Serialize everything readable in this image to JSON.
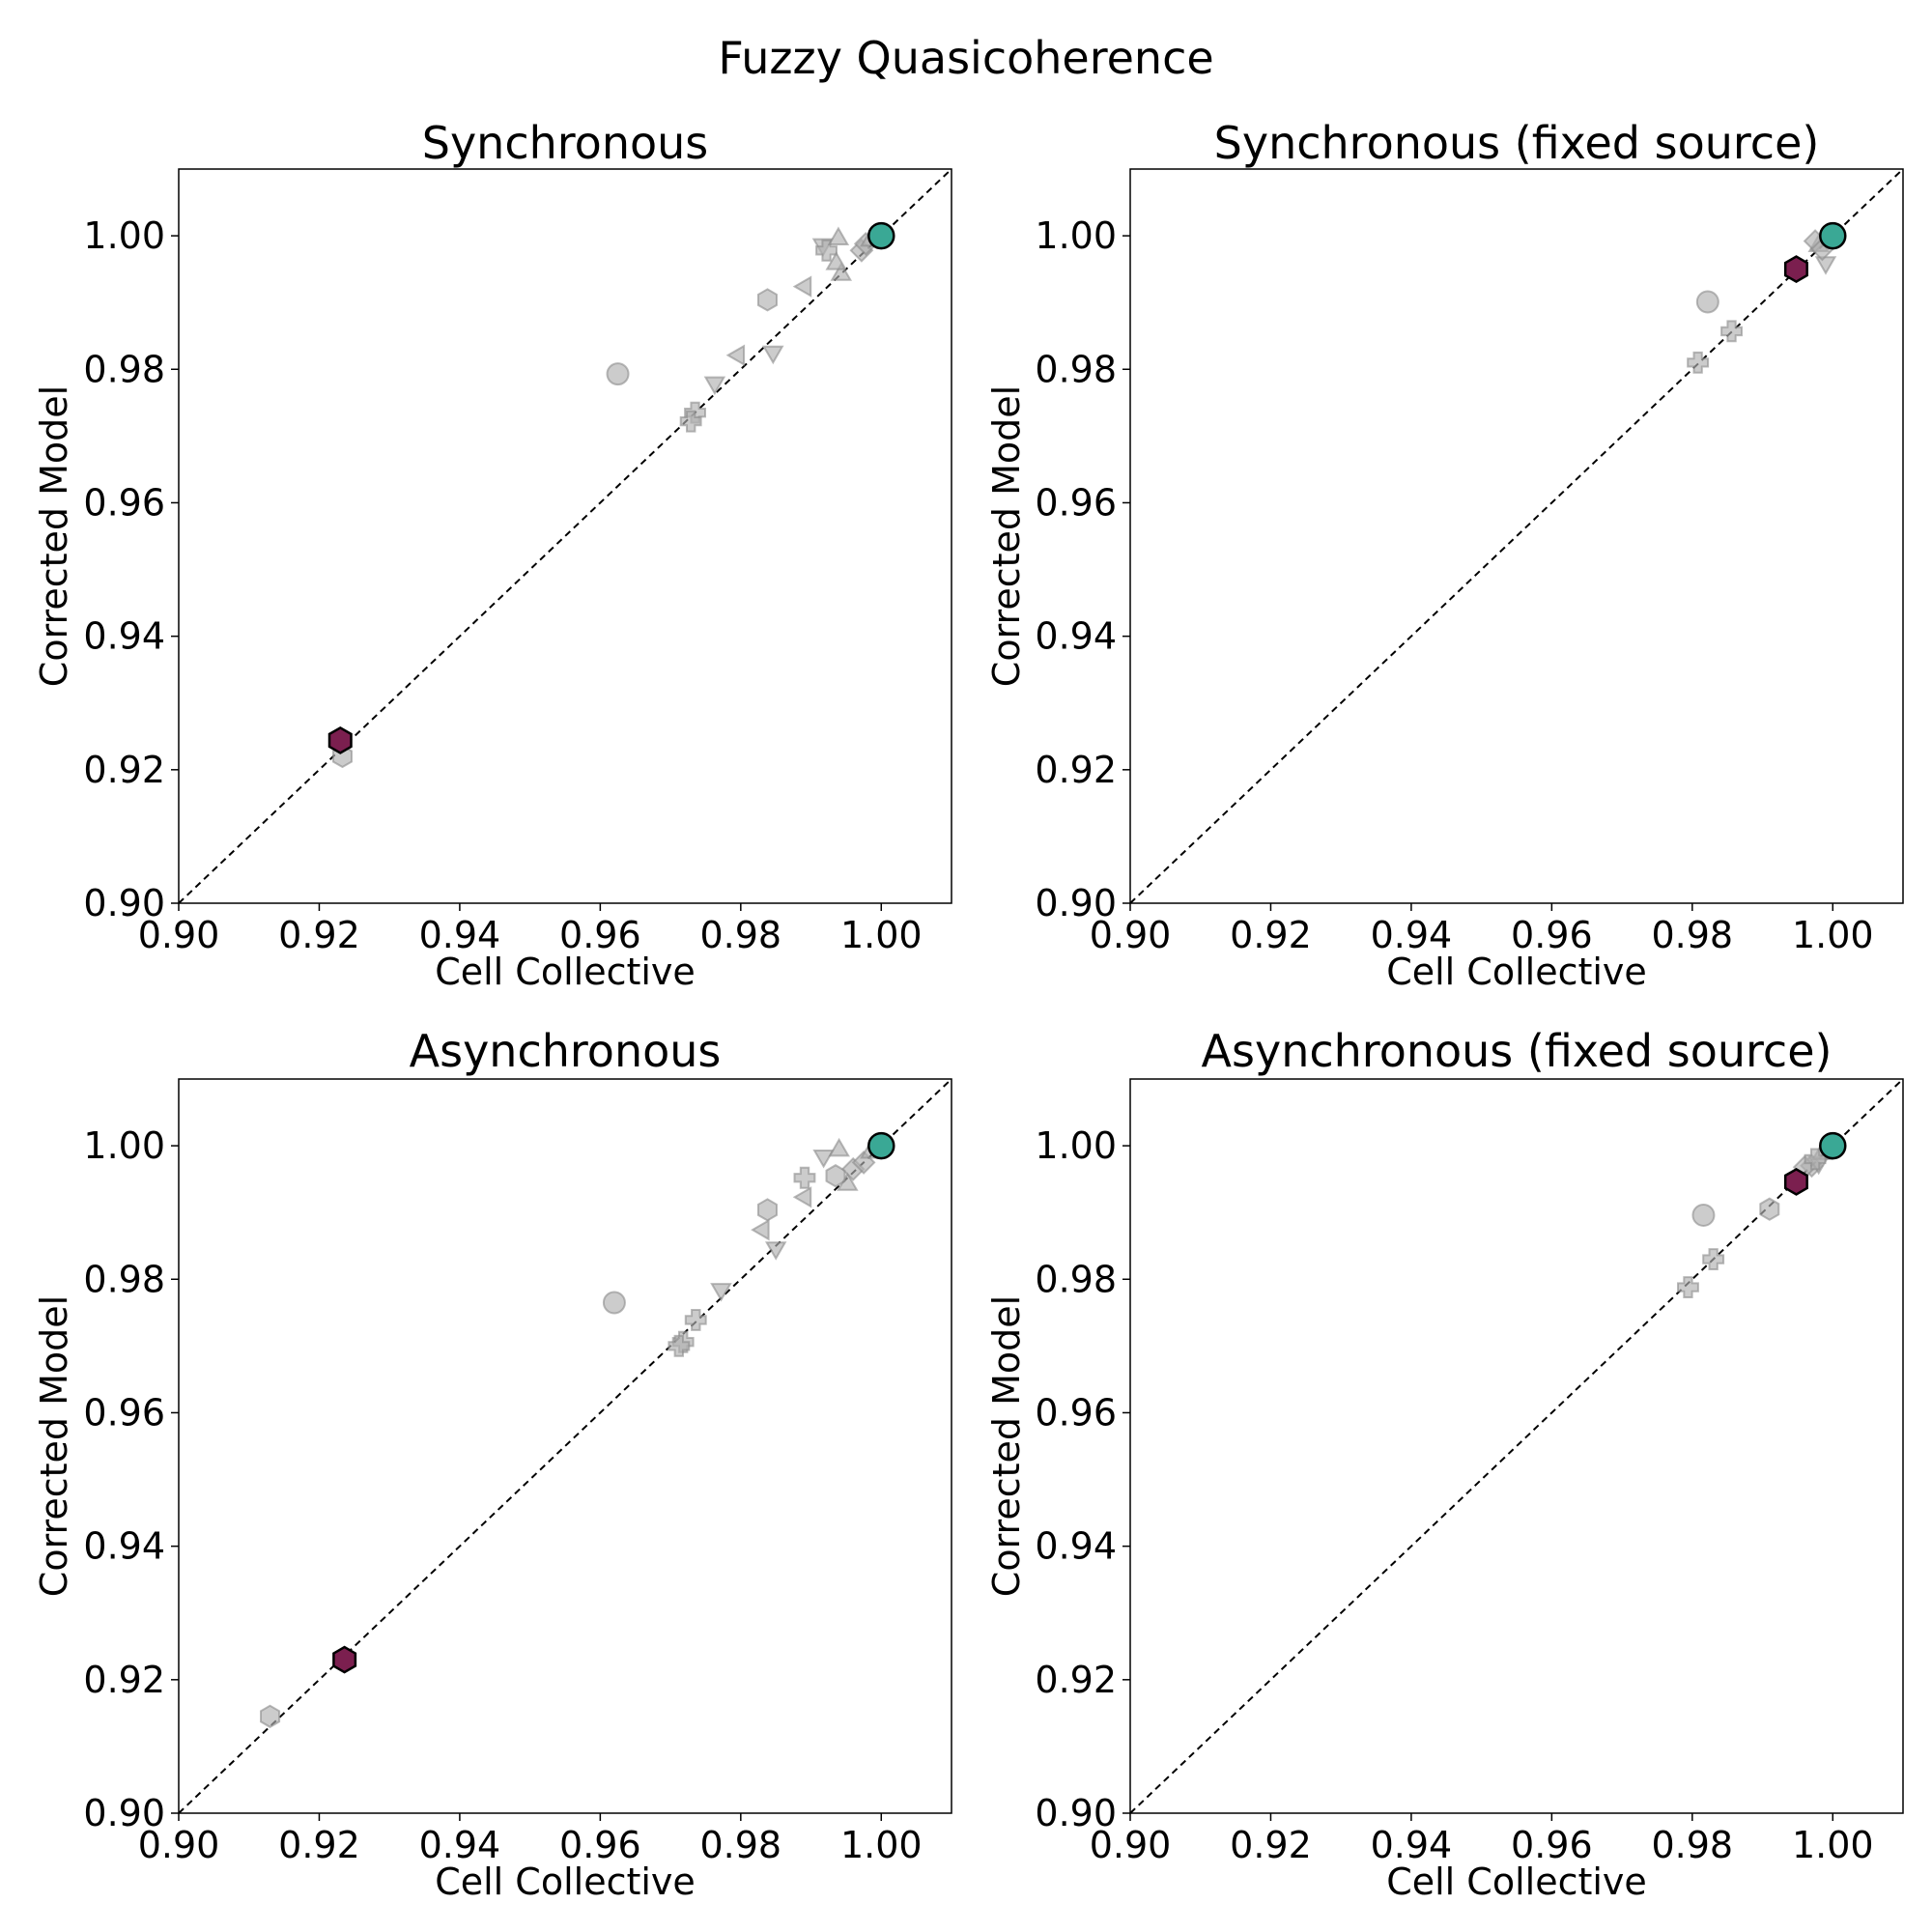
{
  "suptitle": "Fuzzy Quasicoherence",
  "panels": [
    {
      "title": "Synchronous",
      "xlabel": "Cell Collective",
      "ylabel": "Corrected Model",
      "xlim": [
        0.9,
        1.01
      ],
      "ylim": [
        0.9,
        1.01
      ],
      "xticks": [
        "0.90",
        "0.92",
        "0.94",
        "0.96",
        "0.98",
        "1.00"
      ],
      "yticks": [
        "0.90",
        "0.92",
        "0.94",
        "0.96",
        "0.98",
        "1.00"
      ]
    },
    {
      "title": "Synchronous (fixed source)",
      "xlabel": "Cell Collective",
      "ylabel": "Corrected Model",
      "xlim": [
        0.9,
        1.01
      ],
      "ylim": [
        0.9,
        1.01
      ],
      "xticks": [
        "0.90",
        "0.92",
        "0.94",
        "0.96",
        "0.98",
        "1.00"
      ],
      "yticks": [
        "0.90",
        "0.92",
        "0.94",
        "0.96",
        "0.98",
        "1.00"
      ]
    },
    {
      "title": "Asynchronous",
      "xlabel": "Cell Collective",
      "ylabel": "Corrected Model",
      "xlim": [
        0.9,
        1.01
      ],
      "ylim": [
        0.9,
        1.01
      ],
      "xticks": [
        "0.90",
        "0.92",
        "0.94",
        "0.96",
        "0.98",
        "1.00"
      ],
      "yticks": [
        "0.90",
        "0.92",
        "0.94",
        "0.96",
        "0.98",
        "1.00"
      ]
    },
    {
      "title": "Asynchronous (fixed source)",
      "xlabel": "Cell Collective",
      "ylabel": "Corrected Model",
      "xlim": [
        0.9,
        1.01
      ],
      "ylim": [
        0.9,
        1.01
      ],
      "xticks": [
        "0.90",
        "0.92",
        "0.94",
        "0.96",
        "0.98",
        "1.00"
      ],
      "yticks": [
        "0.90",
        "0.92",
        "0.94",
        "0.96",
        "0.98",
        "1.00"
      ]
    }
  ],
  "chart_data": [
    {
      "type": "scatter",
      "title": "Synchronous",
      "xlabel": "Cell Collective",
      "ylabel": "Corrected Model",
      "xlim": [
        0.9,
        1.01
      ],
      "ylim": [
        0.9,
        1.01
      ],
      "reference_line": "y = x (dashed)",
      "series": [
        {
          "color": "#b0b0b0",
          "points": [
            {
              "x": 0.9625,
              "y": 0.9793,
              "marker": "circle"
            },
            {
              "x": 0.9838,
              "y": 0.9904,
              "marker": "hexagon"
            },
            {
              "x": 0.9233,
              "y": 0.922,
              "marker": "hexagon"
            },
            {
              "x": 0.9892,
              "y": 0.9924,
              "marker": "triangle-left"
            },
            {
              "x": 0.9797,
              "y": 0.9821,
              "marker": "triangle-left"
            },
            {
              "x": 0.9763,
              "y": 0.978,
              "marker": "triangle-down"
            },
            {
              "x": 0.9846,
              "y": 0.9826,
              "marker": "triangle-down"
            },
            {
              "x": 0.9917,
              "y": 0.9987,
              "marker": "triangle-down"
            },
            {
              "x": 0.9922,
              "y": 0.9978,
              "marker": "plus"
            },
            {
              "x": 0.9735,
              "y": 0.9735,
              "marker": "plus"
            },
            {
              "x": 0.9729,
              "y": 0.9722,
              "marker": "plus"
            },
            {
              "x": 0.9939,
              "y": 0.9995,
              "marker": "triangle-up"
            },
            {
              "x": 0.9943,
              "y": 0.9942,
              "marker": "triangle-up"
            },
            {
              "x": 0.9936,
              "y": 0.9958,
              "marker": "triangle-up"
            },
            {
              "x": 0.9972,
              "y": 0.9978,
              "marker": "diamond"
            },
            {
              "x": 0.9978,
              "y": 0.9988,
              "marker": "diamond"
            },
            {
              "x": 0.9985,
              "y": 0.9993,
              "marker": "triangle-up"
            }
          ]
        },
        {
          "color": "#7b1f4f",
          "points": [
            {
              "x": 0.923,
              "y": 0.9244,
              "marker": "hexagon"
            }
          ]
        },
        {
          "color": "#3aa895",
          "points": [
            {
              "x": 1.0,
              "y": 1.0,
              "marker": "circle"
            }
          ]
        }
      ]
    },
    {
      "type": "scatter",
      "title": "Synchronous (fixed source)",
      "xlabel": "Cell Collective",
      "ylabel": "Corrected Model",
      "xlim": [
        0.9,
        1.01
      ],
      "ylim": [
        0.9,
        1.01
      ],
      "reference_line": "y = x (dashed)",
      "series": [
        {
          "color": "#b0b0b0",
          "points": [
            {
              "x": 0.9822,
              "y": 0.9901,
              "marker": "circle"
            },
            {
              "x": 0.9856,
              "y": 0.9857,
              "marker": "plus"
            },
            {
              "x": 0.9808,
              "y": 0.981,
              "marker": "plus"
            },
            {
              "x": 0.999,
              "y": 0.996,
              "marker": "triangle-down"
            },
            {
              "x": 0.998,
              "y": 0.9985,
              "marker": "triangle-up"
            },
            {
              "x": 0.9975,
              "y": 0.9992,
              "marker": "diamond"
            },
            {
              "x": 0.9985,
              "y": 0.998,
              "marker": "diamond"
            }
          ]
        },
        {
          "color": "#7b1f4f",
          "points": [
            {
              "x": 0.9948,
              "y": 0.995,
              "marker": "hexagon"
            }
          ]
        },
        {
          "color": "#3aa895",
          "points": [
            {
              "x": 1.0,
              "y": 1.0,
              "marker": "circle"
            }
          ]
        }
      ]
    },
    {
      "type": "scatter",
      "title": "Asynchronous",
      "xlabel": "Cell Collective",
      "ylabel": "Corrected Model",
      "xlim": [
        0.9,
        1.01
      ],
      "ylim": [
        0.9,
        1.01
      ],
      "reference_line": "y = x (dashed)",
      "series": [
        {
          "color": "#b0b0b0",
          "points": [
            {
              "x": 0.962,
              "y": 0.9765,
              "marker": "circle"
            },
            {
              "x": 0.9838,
              "y": 0.9904,
              "marker": "hexagon"
            },
            {
              "x": 0.913,
              "y": 0.9145,
              "marker": "hexagon"
            },
            {
              "x": 0.9891,
              "y": 0.9952,
              "marker": "plus"
            },
            {
              "x": 0.9892,
              "y": 0.9923,
              "marker": "triangle-left"
            },
            {
              "x": 0.9832,
              "y": 0.9874,
              "marker": "triangle-left"
            },
            {
              "x": 0.9772,
              "y": 0.9785,
              "marker": "triangle-down"
            },
            {
              "x": 0.985,
              "y": 0.9847,
              "marker": "triangle-down"
            },
            {
              "x": 0.9918,
              "y": 0.9985,
              "marker": "triangle-down"
            },
            {
              "x": 0.9736,
              "y": 0.9739,
              "marker": "plus"
            },
            {
              "x": 0.9718,
              "y": 0.9706,
              "marker": "plus"
            },
            {
              "x": 0.9712,
              "y": 0.97,
              "marker": "plus"
            },
            {
              "x": 0.994,
              "y": 0.9993,
              "marker": "triangle-up"
            },
            {
              "x": 0.9952,
              "y": 0.9942,
              "marker": "triangle-up"
            },
            {
              "x": 0.9935,
              "y": 0.9955,
              "marker": "hexagon"
            },
            {
              "x": 0.996,
              "y": 0.9965,
              "marker": "diamond"
            },
            {
              "x": 0.9975,
              "y": 0.9975,
              "marker": "diamond"
            },
            {
              "x": 0.9985,
              "y": 0.999,
              "marker": "triangle-up"
            }
          ]
        },
        {
          "color": "#7b1f4f",
          "points": [
            {
              "x": 0.9236,
              "y": 0.923,
              "marker": "hexagon"
            }
          ]
        },
        {
          "color": "#3aa895",
          "points": [
            {
              "x": 1.0,
              "y": 1.0,
              "marker": "circle"
            }
          ]
        }
      ]
    },
    {
      "type": "scatter",
      "title": "Asynchronous (fixed source)",
      "xlabel": "Cell Collective",
      "ylabel": "Corrected Model",
      "xlim": [
        0.9,
        1.01
      ],
      "ylim": [
        0.9,
        1.01
      ],
      "reference_line": "y = x (dashed)",
      "series": [
        {
          "color": "#b0b0b0",
          "points": [
            {
              "x": 0.9816,
              "y": 0.9896,
              "marker": "circle"
            },
            {
              "x": 0.991,
              "y": 0.9905,
              "marker": "hexagon"
            },
            {
              "x": 0.983,
              "y": 0.983,
              "marker": "plus"
            },
            {
              "x": 0.9794,
              "y": 0.9788,
              "marker": "plus"
            },
            {
              "x": 0.997,
              "y": 0.997,
              "marker": "diamond"
            },
            {
              "x": 0.996,
              "y": 0.9968,
              "marker": "diamond"
            },
            {
              "x": 0.998,
              "y": 0.9975,
              "marker": "triangle-down"
            },
            {
              "x": 0.9985,
              "y": 0.9988,
              "marker": "triangle-up"
            },
            {
              "x": 0.9975,
              "y": 0.998,
              "marker": "plus"
            }
          ]
        },
        {
          "color": "#7b1f4f",
          "points": [
            {
              "x": 0.9948,
              "y": 0.9946,
              "marker": "hexagon"
            }
          ]
        },
        {
          "color": "#3aa895",
          "points": [
            {
              "x": 1.0,
              "y": 1.0,
              "marker": "circle"
            }
          ]
        }
      ]
    }
  ]
}
